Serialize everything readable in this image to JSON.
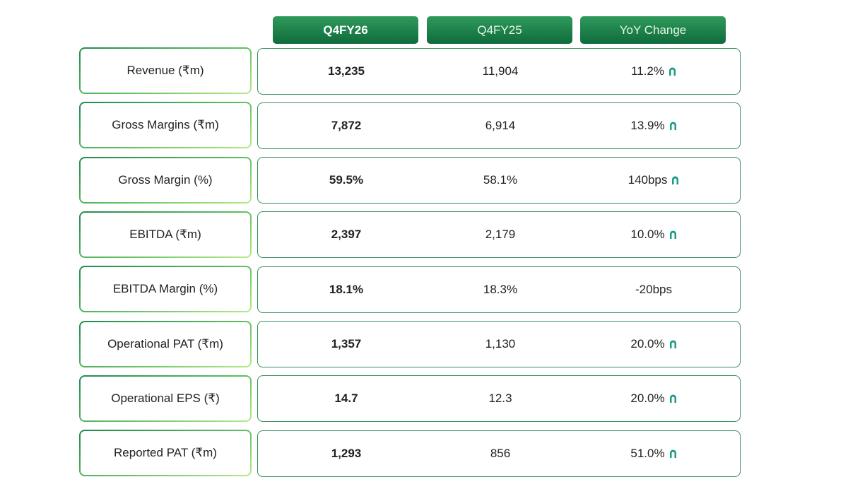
{
  "table": {
    "columns": [
      "Q4FY26",
      "Q4FY25",
      "YoY Change"
    ],
    "rows": [
      {
        "label": "Revenue (₹m)",
        "cells": [
          "13,235",
          "11,904",
          "11.2%"
        ]
      },
      {
        "label": "Gross Margins (₹m)",
        "cells": [
          "7,872",
          "6,914",
          "13.9%"
        ]
      },
      {
        "label": "Gross Margin (%)",
        "cells": [
          "59.5%",
          "58.1%",
          "140bps"
        ]
      },
      {
        "label": "EBITDA (₹m)",
        "cells": [
          "2,397",
          "2,179",
          "10.0%"
        ]
      },
      {
        "label": "EBITDA Margin (%)",
        "cells": [
          "18.1%",
          "18.3%",
          "-20bps"
        ]
      },
      {
        "label": "Operational PAT (₹m)",
        "cells": [
          "1,357",
          "1,130",
          "20.0%"
        ]
      },
      {
        "label": "Operational EPS (₹)",
        "cells": [
          "14.7",
          "12.3",
          "20.0%"
        ]
      },
      {
        "label": "Reported PAT (₹m)",
        "cells": [
          "1,293",
          "856",
          "51.0%"
        ]
      }
    ]
  }
}
